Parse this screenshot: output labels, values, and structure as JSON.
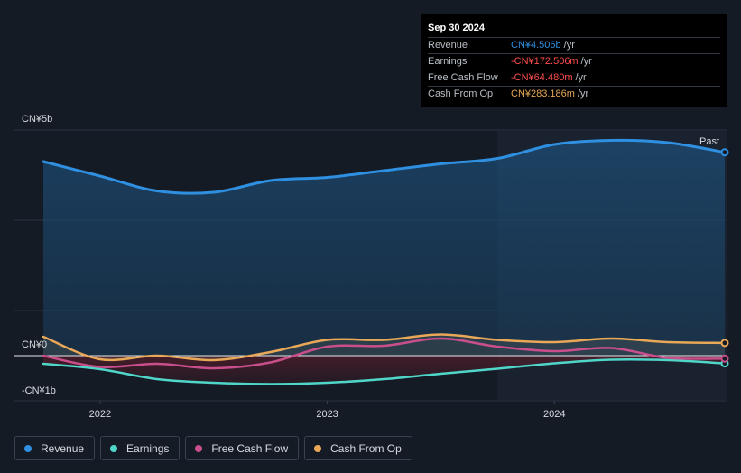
{
  "tooltip": {
    "date": "Sep 30 2024",
    "rows": [
      {
        "label": "Revenue",
        "value": "CN¥4.506b",
        "unit": "/yr",
        "color": "#2f8fe0"
      },
      {
        "label": "Earnings",
        "value": "-CN¥172.506m",
        "unit": "/yr",
        "color": "#ff4d4d"
      },
      {
        "label": "Free Cash Flow",
        "value": "-CN¥64.480m",
        "unit": "/yr",
        "color": "#ff4d4d"
      },
      {
        "label": "Cash From Op",
        "value": "CN¥283.186m",
        "unit": "/yr",
        "color": "#e8a857"
      }
    ]
  },
  "legend": [
    {
      "label": "Revenue",
      "color": "#2f8fe0"
    },
    {
      "label": "Earnings",
      "color": "#4fd6c8"
    },
    {
      "label": "Free Cash Flow",
      "color": "#c94f8c"
    },
    {
      "label": "Cash From Op",
      "color": "#e8a857"
    }
  ],
  "chart_data": {
    "type": "line",
    "y_labels": {
      "top": "CN¥5b",
      "zero": "CN¥0",
      "bottom": "-CN¥1b"
    },
    "ylim": [
      -1,
      5
    ],
    "xlim": [
      2021.75,
      2024.75
    ],
    "x_ticks": [
      {
        "value": 2022,
        "label": "2022"
      },
      {
        "value": 2023,
        "label": "2023"
      },
      {
        "value": 2024,
        "label": "2024"
      }
    ],
    "past_label": "Past",
    "past_start": 2023.75,
    "series": [
      {
        "name": "Revenue",
        "color": "#2f8fe0",
        "x": [
          2021.75,
          2022.0,
          2022.25,
          2022.5,
          2022.75,
          2023.0,
          2023.25,
          2023.5,
          2023.75,
          2024.0,
          2024.25,
          2024.5,
          2024.75
        ],
        "y": [
          4.3,
          3.98,
          3.65,
          3.62,
          3.88,
          3.95,
          4.1,
          4.25,
          4.37,
          4.68,
          4.77,
          4.72,
          4.506
        ]
      },
      {
        "name": "Earnings",
        "color": "#4fd6c8",
        "x": [
          2021.75,
          2022.0,
          2022.25,
          2022.5,
          2022.75,
          2023.0,
          2023.25,
          2023.5,
          2023.75,
          2024.0,
          2024.25,
          2024.5,
          2024.75
        ],
        "y": [
          -0.18,
          -0.3,
          -0.52,
          -0.6,
          -0.63,
          -0.6,
          -0.52,
          -0.4,
          -0.29,
          -0.17,
          -0.09,
          -0.1,
          -0.172506
        ]
      },
      {
        "name": "Free Cash Flow",
        "color": "#c94f8c",
        "x": [
          2021.75,
          2022.0,
          2022.25,
          2022.5,
          2022.75,
          2023.0,
          2023.25,
          2023.5,
          2023.75,
          2024.0,
          2024.25,
          2024.5,
          2024.75
        ],
        "y": [
          0.0,
          -0.25,
          -0.18,
          -0.28,
          -0.15,
          0.2,
          0.22,
          0.38,
          0.2,
          0.1,
          0.17,
          -0.05,
          -0.06448
        ]
      },
      {
        "name": "Cash From Op",
        "color": "#e8a857",
        "x": [
          2021.75,
          2022.0,
          2022.25,
          2022.5,
          2022.75,
          2023.0,
          2023.25,
          2023.5,
          2023.75,
          2024.0,
          2024.25,
          2024.5,
          2024.75
        ],
        "y": [
          0.42,
          -0.08,
          0.0,
          -0.1,
          0.08,
          0.35,
          0.35,
          0.47,
          0.35,
          0.3,
          0.38,
          0.3,
          0.283186
        ]
      }
    ]
  }
}
